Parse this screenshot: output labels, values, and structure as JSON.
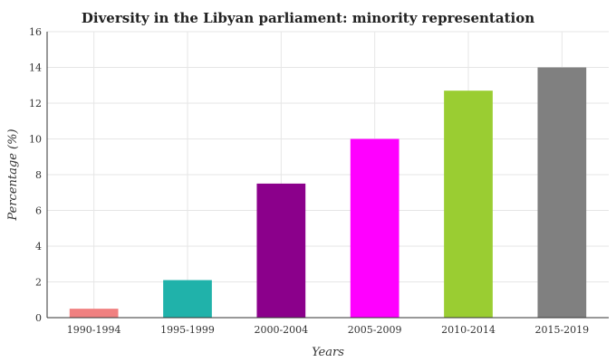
{
  "chart_data": {
    "type": "bar",
    "title": "Diversity in the Libyan parliament: minority representation",
    "xlabel": "Years",
    "ylabel": "Percentage (%)",
    "categories": [
      "1990-1994",
      "1995-1999",
      "2000-2004",
      "2005-2009",
      "2010-2014",
      "2015-2019"
    ],
    "values": [
      0.5,
      2.1,
      7.5,
      10.0,
      12.7,
      14.0
    ],
    "colors": [
      "#f08080",
      "#20b2aa",
      "#8b008b",
      "#ff00ff",
      "#9acd32",
      "#808080"
    ],
    "ylim": [
      0,
      16
    ],
    "yticks": [
      0,
      2,
      4,
      6,
      8,
      10,
      12,
      14,
      16
    ],
    "grid": true
  }
}
